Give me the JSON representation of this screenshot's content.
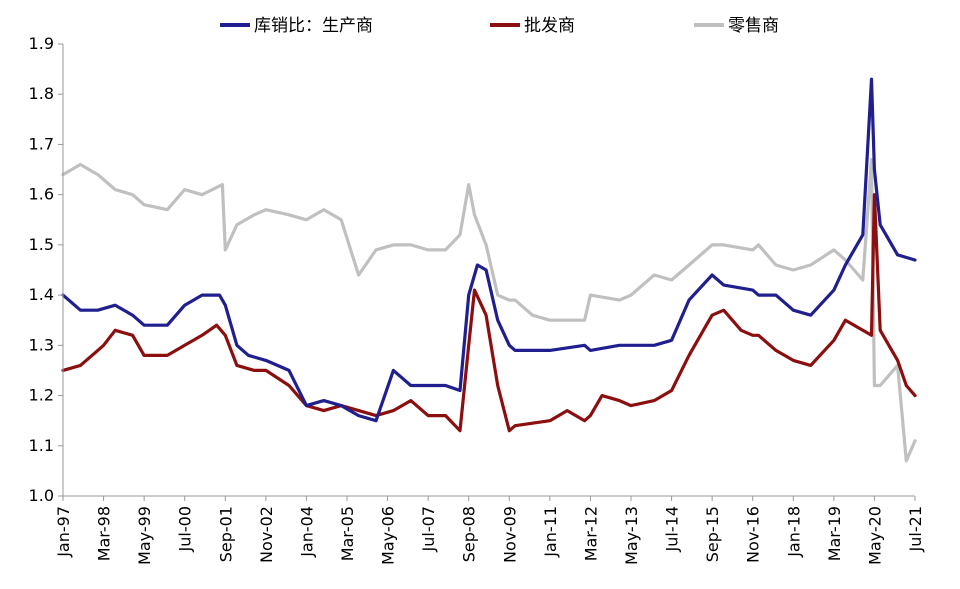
{
  "chart_data": {
    "type": "line",
    "x_ticks": [
      "Jan-97",
      "Mar-98",
      "May-99",
      "Jul-00",
      "Sep-01",
      "Nov-02",
      "Jan-04",
      "Mar-05",
      "May-06",
      "Jul-07",
      "Sep-08",
      "Nov-09",
      "Jan-11",
      "Mar-12",
      "May-13",
      "Jul-14",
      "Sep-15",
      "Nov-16",
      "Jan-18",
      "Mar-19",
      "May-20",
      "Jul-21"
    ],
    "ylim": [
      1.0,
      1.9
    ],
    "y_ticks": [
      "1.0",
      "1.1",
      "1.2",
      "1.3",
      "1.4",
      "1.5",
      "1.6",
      "1.7",
      "1.8",
      "1.9"
    ],
    "legend_position": "top",
    "grid": false,
    "series": [
      {
        "name": "库销比：生产商",
        "color": "#1f1f8f",
        "points": [
          [
            "Jan-97",
            1.4
          ],
          [
            "Jul-97",
            1.37
          ],
          [
            "Jan-98",
            1.37
          ],
          [
            "Jul-98",
            1.38
          ],
          [
            "Jan-99",
            1.36
          ],
          [
            "May-99",
            1.34
          ],
          [
            "Jan-00",
            1.34
          ],
          [
            "Jul-00",
            1.38
          ],
          [
            "Jan-01",
            1.4
          ],
          [
            "Jul-01",
            1.4
          ],
          [
            "Sep-01",
            1.38
          ],
          [
            "Jan-02",
            1.3
          ],
          [
            "May-02",
            1.28
          ],
          [
            "Nov-02",
            1.27
          ],
          [
            "Jul-03",
            1.25
          ],
          [
            "Jan-04",
            1.18
          ],
          [
            "Jul-04",
            1.19
          ],
          [
            "Jan-05",
            1.18
          ],
          [
            "Jul-05",
            1.16
          ],
          [
            "Jan-06",
            1.15
          ],
          [
            "Jul-06",
            1.25
          ],
          [
            "Jan-07",
            1.22
          ],
          [
            "Jul-07",
            1.22
          ],
          [
            "Jan-08",
            1.22
          ],
          [
            "Jun-08",
            1.21
          ],
          [
            "Sep-08",
            1.4
          ],
          [
            "Dec-08",
            1.46
          ],
          [
            "Mar-09",
            1.45
          ],
          [
            "Jul-09",
            1.35
          ],
          [
            "Nov-09",
            1.3
          ],
          [
            "Jan-10",
            1.29
          ],
          [
            "Jan-11",
            1.29
          ],
          [
            "Jan-12",
            1.3
          ],
          [
            "Mar-12",
            1.29
          ],
          [
            "Jan-13",
            1.3
          ],
          [
            "May-13",
            1.3
          ],
          [
            "Jan-14",
            1.3
          ],
          [
            "Jul-14",
            1.31
          ],
          [
            "Jan-15",
            1.39
          ],
          [
            "Sep-15",
            1.44
          ],
          [
            "Jan-16",
            1.42
          ],
          [
            "Nov-16",
            1.41
          ],
          [
            "Jan-17",
            1.4
          ],
          [
            "Jul-17",
            1.4
          ],
          [
            "Jan-18",
            1.37
          ],
          [
            "Jul-18",
            1.36
          ],
          [
            "Mar-19",
            1.41
          ],
          [
            "Jul-19",
            1.46
          ],
          [
            "Jan-20",
            1.52
          ],
          [
            "Apr-20",
            1.83
          ],
          [
            "May-20",
            1.65
          ],
          [
            "Jul-20",
            1.54
          ],
          [
            "Jan-21",
            1.48
          ],
          [
            "Jul-21",
            1.47
          ]
        ]
      },
      {
        "name": "批发商",
        "color": "#8b0f0f",
        "points": [
          [
            "Jan-97",
            1.25
          ],
          [
            "Jul-97",
            1.26
          ],
          [
            "Jan-98",
            1.29
          ],
          [
            "Mar-98",
            1.3
          ],
          [
            "Jul-98",
            1.33
          ],
          [
            "Jan-99",
            1.32
          ],
          [
            "May-99",
            1.28
          ],
          [
            "Jan-00",
            1.28
          ],
          [
            "Jul-00",
            1.3
          ],
          [
            "Jan-01",
            1.32
          ],
          [
            "Jun-01",
            1.34
          ],
          [
            "Sep-01",
            1.32
          ],
          [
            "Jan-02",
            1.26
          ],
          [
            "Jul-02",
            1.25
          ],
          [
            "Nov-02",
            1.25
          ],
          [
            "Jul-03",
            1.22
          ],
          [
            "Jan-04",
            1.18
          ],
          [
            "Jul-04",
            1.17
          ],
          [
            "Jan-05",
            1.18
          ],
          [
            "Jul-05",
            1.17
          ],
          [
            "Jan-06",
            1.16
          ],
          [
            "Jul-06",
            1.17
          ],
          [
            "Jan-07",
            1.19
          ],
          [
            "Jul-07",
            1.16
          ],
          [
            "Jan-08",
            1.16
          ],
          [
            "Jun-08",
            1.13
          ],
          [
            "Sep-08",
            1.3
          ],
          [
            "Nov-08",
            1.41
          ],
          [
            "Mar-09",
            1.36
          ],
          [
            "Jul-09",
            1.22
          ],
          [
            "Nov-09",
            1.13
          ],
          [
            "Jan-10",
            1.14
          ],
          [
            "Jan-11",
            1.15
          ],
          [
            "Jul-11",
            1.17
          ],
          [
            "Jan-12",
            1.15
          ],
          [
            "Mar-12",
            1.16
          ],
          [
            "Jul-12",
            1.2
          ],
          [
            "Jan-13",
            1.19
          ],
          [
            "May-13",
            1.18
          ],
          [
            "Jan-14",
            1.19
          ],
          [
            "Jul-14",
            1.21
          ],
          [
            "Jan-15",
            1.28
          ],
          [
            "Jul-15",
            1.34
          ],
          [
            "Sep-15",
            1.36
          ],
          [
            "Jan-16",
            1.37
          ],
          [
            "Jul-16",
            1.33
          ],
          [
            "Nov-16",
            1.32
          ],
          [
            "Jan-17",
            1.32
          ],
          [
            "Jul-17",
            1.29
          ],
          [
            "Jan-18",
            1.27
          ],
          [
            "Jul-18",
            1.26
          ],
          [
            "Mar-19",
            1.31
          ],
          [
            "Jul-19",
            1.35
          ],
          [
            "Jan-20",
            1.33
          ],
          [
            "Apr-20",
            1.32
          ],
          [
            "May-20",
            1.6
          ],
          [
            "Jul-20",
            1.33
          ],
          [
            "Jan-21",
            1.27
          ],
          [
            "Apr-21",
            1.22
          ],
          [
            "Jul-21",
            1.2
          ]
        ]
      },
      {
        "name": "零售商",
        "color": "#c0c0c0",
        "points": [
          [
            "Jan-97",
            1.64
          ],
          [
            "Jul-97",
            1.66
          ],
          [
            "Jan-98",
            1.64
          ],
          [
            "Mar-98",
            1.63
          ],
          [
            "Jul-98",
            1.61
          ],
          [
            "Jan-99",
            1.6
          ],
          [
            "May-99",
            1.58
          ],
          [
            "Jan-00",
            1.57
          ],
          [
            "Jul-00",
            1.61
          ],
          [
            "Jan-01",
            1.6
          ],
          [
            "Aug-01",
            1.62
          ],
          [
            "Sep-01",
            1.49
          ],
          [
            "Jan-02",
            1.54
          ],
          [
            "Jul-02",
            1.56
          ],
          [
            "Nov-02",
            1.57
          ],
          [
            "Jul-03",
            1.56
          ],
          [
            "Jan-04",
            1.55
          ],
          [
            "Jul-04",
            1.57
          ],
          [
            "Jan-05",
            1.55
          ],
          [
            "Jul-05",
            1.44
          ],
          [
            "Jan-06",
            1.49
          ],
          [
            "Jul-06",
            1.5
          ],
          [
            "Jan-07",
            1.5
          ],
          [
            "Jul-07",
            1.49
          ],
          [
            "Jan-08",
            1.49
          ],
          [
            "Jun-08",
            1.52
          ],
          [
            "Sep-08",
            1.62
          ],
          [
            "Nov-08",
            1.56
          ],
          [
            "Mar-09",
            1.5
          ],
          [
            "Jul-09",
            1.4
          ],
          [
            "Nov-09",
            1.39
          ],
          [
            "Jan-10",
            1.39
          ],
          [
            "Jul-10",
            1.36
          ],
          [
            "Jan-11",
            1.35
          ],
          [
            "Jan-12",
            1.35
          ],
          [
            "Mar-12",
            1.4
          ],
          [
            "Jan-13",
            1.39
          ],
          [
            "May-13",
            1.4
          ],
          [
            "Jan-14",
            1.44
          ],
          [
            "Jul-14",
            1.43
          ],
          [
            "Jan-15",
            1.46
          ],
          [
            "Sep-15",
            1.5
          ],
          [
            "Jan-16",
            1.5
          ],
          [
            "Nov-16",
            1.49
          ],
          [
            "Jan-17",
            1.5
          ],
          [
            "Jul-17",
            1.46
          ],
          [
            "Jan-18",
            1.45
          ],
          [
            "Jul-18",
            1.46
          ],
          [
            "Mar-19",
            1.49
          ],
          [
            "Jul-19",
            1.47
          ],
          [
            "Jan-20",
            1.43
          ],
          [
            "Apr-20",
            1.67
          ],
          [
            "May-20",
            1.22
          ],
          [
            "Jul-20",
            1.22
          ],
          [
            "Jan-21",
            1.26
          ],
          [
            "Apr-21",
            1.07
          ],
          [
            "Jul-21",
            1.11
          ]
        ]
      }
    ]
  }
}
